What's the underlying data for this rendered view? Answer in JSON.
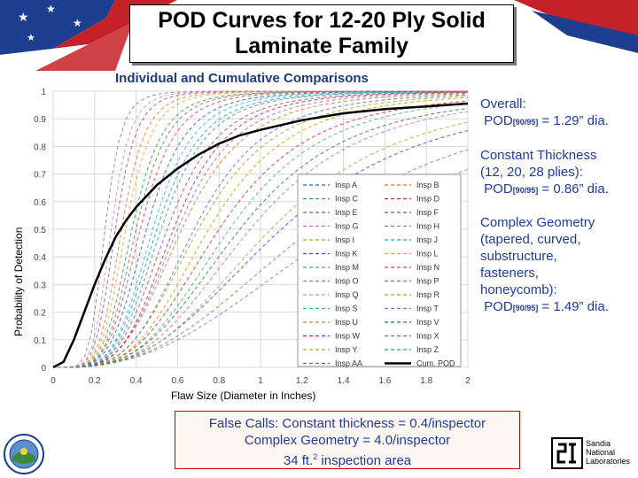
{
  "header": {
    "title_line1": "POD Curves for 12-20 Ply Solid",
    "title_line2": "Laminate Family",
    "subtitle": "Individual and Cumulative Comparisons"
  },
  "annotations": {
    "overall_label": "Overall:",
    "overall_pod_prefix": "POD",
    "overall_pod_sub": "[90/95]",
    "overall_pod_value": " = 1.29” dia.",
    "constant_line1": "Constant Thickness",
    "constant_line2": "(12, 20, 28 plies):",
    "constant_pod_prefix": "POD",
    "constant_pod_sub": "[90/95]",
    "constant_pod_value": " = 0.86” dia.",
    "complex_line1": "Complex Geometry",
    "complex_line2": "(tapered, curved,",
    "complex_line3": "substructure,",
    "complex_line4": "fasteners,",
    "complex_line5": "honeycomb):",
    "complex_pod_prefix": "POD",
    "complex_pod_sub": "[90/95]",
    "complex_pod_value": " = 1.49” dia."
  },
  "false_calls": {
    "line1": "False Calls:  Constant thickness = 0.4/inspector",
    "line2": "Complex Geometry = 4.0/inspector",
    "line3_prefix": "34 ft.",
    "line3_sup": "2",
    "line3_suffix": " inspection area"
  },
  "logos": {
    "sandia_line1": "Sandia",
    "sandia_line2": "National",
    "sandia_line3": "Laboratories"
  },
  "colors": {
    "annotation_blue": "#1f3a9a",
    "false_box_border": "#cc0000",
    "cum_pod": "#000000"
  },
  "chart_data": {
    "type": "line",
    "xlabel": "Flaw Size (Diameter in Inches)",
    "ylabel": "Probability of Detection",
    "xlim": [
      0,
      2
    ],
    "ylim": [
      0,
      1
    ],
    "xticks": [
      "0",
      "0.2",
      "0.4",
      "0.6",
      "0.8",
      "1",
      "1.2",
      "1.4",
      "1.6",
      "1.8",
      "2"
    ],
    "yticks": [
      "0",
      "0.1",
      "0.2",
      "0.3",
      "0.4",
      "0.5",
      "0.6",
      "0.7",
      "0.8",
      "0.9",
      "1"
    ],
    "grid": true,
    "legend_position": "right",
    "series": [
      {
        "name": "Insp A",
        "color": "#1f5fbf",
        "a50": 0.45,
        "slope": 2.4
      },
      {
        "name": "Insp B",
        "color": "#e07020",
        "a50": 0.62,
        "slope": 2.0
      },
      {
        "name": "Insp C",
        "color": "#3a9a3a",
        "a50": 0.38,
        "slope": 2.6
      },
      {
        "name": "Insp D",
        "color": "#c03030",
        "a50": 0.8,
        "slope": 1.8
      },
      {
        "name": "Insp E",
        "color": "#8050b0",
        "a50": 0.3,
        "slope": 3.0
      },
      {
        "name": "Insp F",
        "color": "#8a5a3a",
        "a50": 0.55,
        "slope": 2.2
      },
      {
        "name": "Insp G",
        "color": "#d060a0",
        "a50": 0.95,
        "slope": 1.7
      },
      {
        "name": "Insp H",
        "color": "#808080",
        "a50": 0.25,
        "slope": 3.2
      },
      {
        "name": "Insp I",
        "color": "#a0a020",
        "a50": 0.7,
        "slope": 1.9
      },
      {
        "name": "Insp J",
        "color": "#20a0b0",
        "a50": 0.5,
        "slope": 2.3
      },
      {
        "name": "Insp K",
        "color": "#3050d0",
        "a50": 1.1,
        "slope": 1.5
      },
      {
        "name": "Insp L",
        "color": "#f0a040",
        "a50": 0.35,
        "slope": 2.8
      },
      {
        "name": "Insp M",
        "color": "#40b060",
        "a50": 0.85,
        "slope": 1.8
      },
      {
        "name": "Insp N",
        "color": "#e04050",
        "a50": 0.42,
        "slope": 2.5
      },
      {
        "name": "Insp O",
        "color": "#9070c0",
        "a50": 0.6,
        "slope": 2.1
      },
      {
        "name": "Insp P",
        "color": "#a07050",
        "a50": 1.25,
        "slope": 1.4
      },
      {
        "name": "Insp Q",
        "color": "#e080c0",
        "a50": 0.28,
        "slope": 3.1
      },
      {
        "name": "Insp R",
        "color": "#c0a000",
        "a50": 0.75,
        "slope": 1.9
      },
      {
        "name": "Insp S",
        "color": "#30b0d0",
        "a50": 0.48,
        "slope": 2.4
      },
      {
        "name": "Insp T",
        "color": "#6080e0",
        "a50": 1.4,
        "slope": 1.3
      },
      {
        "name": "Insp U",
        "color": "#d08030",
        "a50": 0.33,
        "slope": 2.9
      },
      {
        "name": "Insp V",
        "color": "#2a7a2a",
        "a50": 0.9,
        "slope": 1.7
      },
      {
        "name": "Insp W",
        "color": "#b02060",
        "a50": 0.58,
        "slope": 2.2
      },
      {
        "name": "Insp X",
        "color": "#707070",
        "a50": 0.4,
        "slope": 2.6
      },
      {
        "name": "Insp Y",
        "color": "#90b030",
        "a50": 1.05,
        "slope": 1.6
      },
      {
        "name": "Insp Z",
        "color": "#4090a0",
        "a50": 0.52,
        "slope": 2.3
      },
      {
        "name": "Insp AA",
        "color": "#5070c0",
        "a50": 0.68,
        "slope": 2.0
      },
      {
        "name": "Cum. POD",
        "color": "#000000",
        "cumulative": true,
        "x": [
          0.0,
          0.05,
          0.1,
          0.15,
          0.2,
          0.25,
          0.3,
          0.35,
          0.4,
          0.45,
          0.5,
          0.6,
          0.7,
          0.8,
          0.9,
          1.0,
          1.2,
          1.4,
          1.6,
          1.8,
          2.0
        ],
        "y": [
          0.0,
          0.02,
          0.1,
          0.2,
          0.3,
          0.39,
          0.47,
          0.53,
          0.58,
          0.62,
          0.66,
          0.72,
          0.77,
          0.81,
          0.84,
          0.86,
          0.895,
          0.92,
          0.935,
          0.945,
          0.955
        ]
      }
    ]
  }
}
